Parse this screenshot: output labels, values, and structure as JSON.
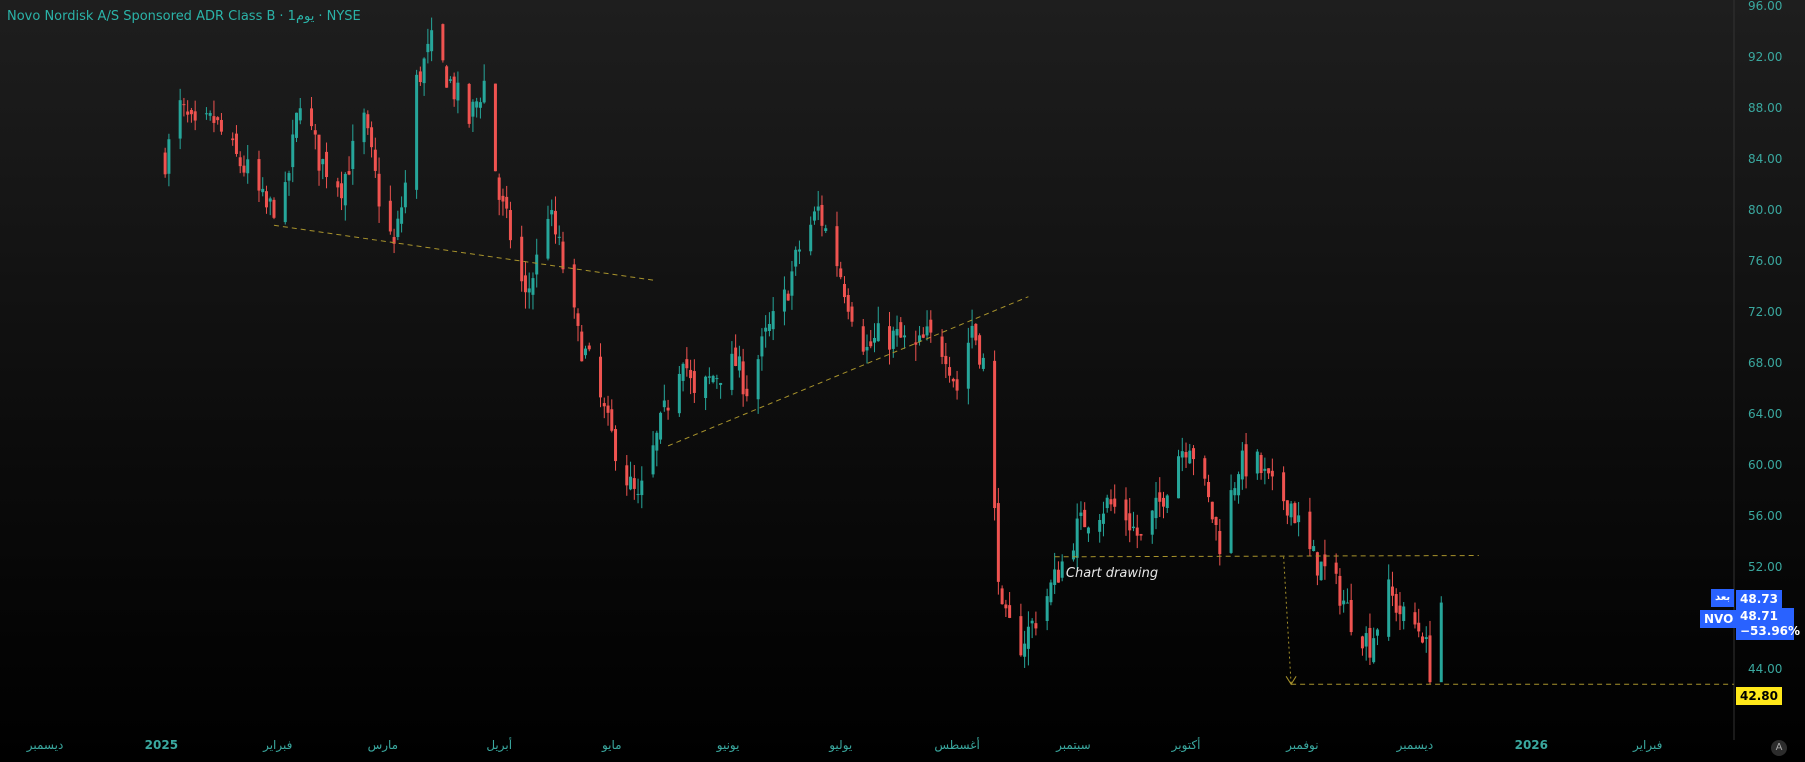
{
  "header": {
    "symbol_name": "Novo Nordisk A/S Sponsored ADR Class B",
    "interval": "1يوم",
    "exchange": "NYSE"
  },
  "price_tags": {
    "after_hours_label": "بعد",
    "after_hours_price": "48.73",
    "ticker": "NVO",
    "last_price": "48.71",
    "change_pct": "−53.96%",
    "target_price": "42.80"
  },
  "annotation_text": "Chart drawing",
  "corner_button": "A",
  "colors": {
    "up": "#26a69a",
    "down": "#ef5350",
    "drawing": "#a8932c",
    "axis_text": "#3aa89f",
    "blue_tag": "#2962ff",
    "yellow_tag": "#ffe81a"
  },
  "chart_data": {
    "type": "candlestick",
    "ylim": [
      40,
      96
    ],
    "yticks": [
      "96.00",
      "92.00",
      "88.00",
      "84.00",
      "80.00",
      "76.00",
      "72.00",
      "68.00",
      "64.00",
      "60.00",
      "56.00",
      "52.00",
      "44.00"
    ],
    "xticks": [
      {
        "label": "ديسمبر",
        "date": "2024-12-01"
      },
      {
        "label": "2025",
        "date": "2025-01-01",
        "year": true
      },
      {
        "label": "فبراير",
        "date": "2025-02-01"
      },
      {
        "label": "مارس",
        "date": "2025-03-01"
      },
      {
        "label": "أبريل",
        "date": "2025-04-01"
      },
      {
        "label": "مايو",
        "date": "2025-05-01"
      },
      {
        "label": "يونيو",
        "date": "2025-06-01"
      },
      {
        "label": "يوليو",
        "date": "2025-07-01"
      },
      {
        "label": "أغسطس",
        "date": "2025-08-01"
      },
      {
        "label": "سبتمبر",
        "date": "2025-09-01"
      },
      {
        "label": "أكتوبر",
        "date": "2025-10-01"
      },
      {
        "label": "نوفمبر",
        "date": "2025-11-01"
      },
      {
        "label": "ديسمبر",
        "date": "2025-12-01"
      },
      {
        "label": "2026",
        "date": "2026-01-01",
        "year": true
      },
      {
        "label": "فبراير",
        "date": "2026-02-01"
      }
    ],
    "xlim": [
      "2024-11-19",
      "2026-02-24"
    ],
    "close_path": [
      [
        "2025-01-02",
        84
      ],
      [
        "2025-01-06",
        88
      ],
      [
        "2025-01-10",
        86
      ],
      [
        "2025-01-15",
        87
      ],
      [
        "2025-01-21",
        84
      ],
      [
        "2025-01-24",
        83
      ],
      [
        "2025-01-29",
        80
      ],
      [
        "2025-02-03",
        81
      ],
      [
        "2025-02-07",
        89
      ],
      [
        "2025-02-12",
        84
      ],
      [
        "2025-02-18",
        82
      ],
      [
        "2025-02-24",
        87
      ],
      [
        "2025-02-28",
        81
      ],
      [
        "2025-03-04",
        77
      ],
      [
        "2025-03-07",
        82
      ],
      [
        "2025-03-10",
        90
      ],
      [
        "2025-03-14",
        93
      ],
      [
        "2025-03-19",
        90
      ],
      [
        "2025-03-24",
        87
      ],
      [
        "2025-03-28",
        90
      ],
      [
        "2025-04-01",
        81
      ],
      [
        "2025-04-04",
        78
      ],
      [
        "2025-04-08",
        73
      ],
      [
        "2025-04-11",
        76
      ],
      [
        "2025-04-14",
        80
      ],
      [
        "2025-04-17",
        77
      ],
      [
        "2025-04-22",
        70
      ],
      [
        "2025-04-25",
        68
      ],
      [
        "2025-04-30",
        63
      ],
      [
        "2025-05-05",
        59
      ],
      [
        "2025-05-08",
        57
      ],
      [
        "2025-05-12",
        61
      ],
      [
        "2025-05-15",
        64
      ],
      [
        "2025-05-20",
        69
      ],
      [
        "2025-05-23",
        65
      ],
      [
        "2025-05-28",
        67
      ],
      [
        "2025-06-03",
        68
      ],
      [
        "2025-06-06",
        66
      ],
      [
        "2025-06-11",
        70
      ],
      [
        "2025-06-16",
        73
      ],
      [
        "2025-06-20",
        77
      ],
      [
        "2025-06-25",
        80
      ],
      [
        "2025-06-30",
        76
      ],
      [
        "2025-07-03",
        73
      ],
      [
        "2025-07-08",
        69
      ],
      [
        "2025-07-11",
        70
      ],
      [
        "2025-07-16",
        70
      ],
      [
        "2025-07-21",
        69
      ],
      [
        "2025-07-24",
        70
      ],
      [
        "2025-07-29",
        69
      ],
      [
        "2025-08-01",
        66
      ],
      [
        "2025-08-05",
        71
      ],
      [
        "2025-08-08",
        68
      ],
      [
        "2025-08-13",
        48
      ],
      [
        "2025-08-18",
        46
      ],
      [
        "2025-08-22",
        48
      ],
      [
        "2025-08-27",
        51
      ],
      [
        "2025-09-02",
        55
      ],
      [
        "2025-09-05",
        56
      ],
      [
        "2025-09-10",
        57
      ],
      [
        "2025-09-15",
        56
      ],
      [
        "2025-09-19",
        54
      ],
      [
        "2025-09-24",
        57
      ],
      [
        "2025-09-29",
        61
      ],
      [
        "2025-10-02",
        62
      ],
      [
        "2025-10-07",
        57
      ],
      [
        "2025-10-10",
        54
      ],
      [
        "2025-10-15",
        60
      ],
      [
        "2025-10-20",
        60
      ],
      [
        "2025-10-24",
        58
      ],
      [
        "2025-10-29",
        57
      ],
      [
        "2025-11-03",
        53
      ],
      [
        "2025-11-06",
        52
      ],
      [
        "2025-11-11",
        50
      ],
      [
        "2025-11-14",
        48
      ],
      [
        "2025-11-19",
        46
      ],
      [
        "2025-11-24",
        50
      ],
      [
        "2025-11-28",
        48
      ],
      [
        "2025-12-03",
        47
      ],
      [
        "2025-12-05",
        44
      ],
      [
        "2025-12-08",
        48.71
      ]
    ],
    "drawings": [
      {
        "type": "trendline",
        "from": [
          "2025-01-31",
          78.8
        ],
        "to": [
          "2025-05-12",
          74.5
        ]
      },
      {
        "type": "trendline",
        "from": [
          "2025-05-16",
          61.5
        ],
        "to": [
          "2025-08-20",
          73.2
        ]
      },
      {
        "type": "horizontal",
        "from": [
          "2025-08-27",
          52.8
        ],
        "to": [
          "2025-12-18",
          52.9
        ]
      },
      {
        "type": "arrow",
        "from": [
          "2025-10-27",
          52.8
        ],
        "to": [
          "2025-10-29",
          42.8
        ]
      },
      {
        "type": "horizontal",
        "from": [
          "2025-10-29",
          42.8
        ],
        "to": [
          "2026-02-24",
          42.8
        ]
      }
    ]
  }
}
